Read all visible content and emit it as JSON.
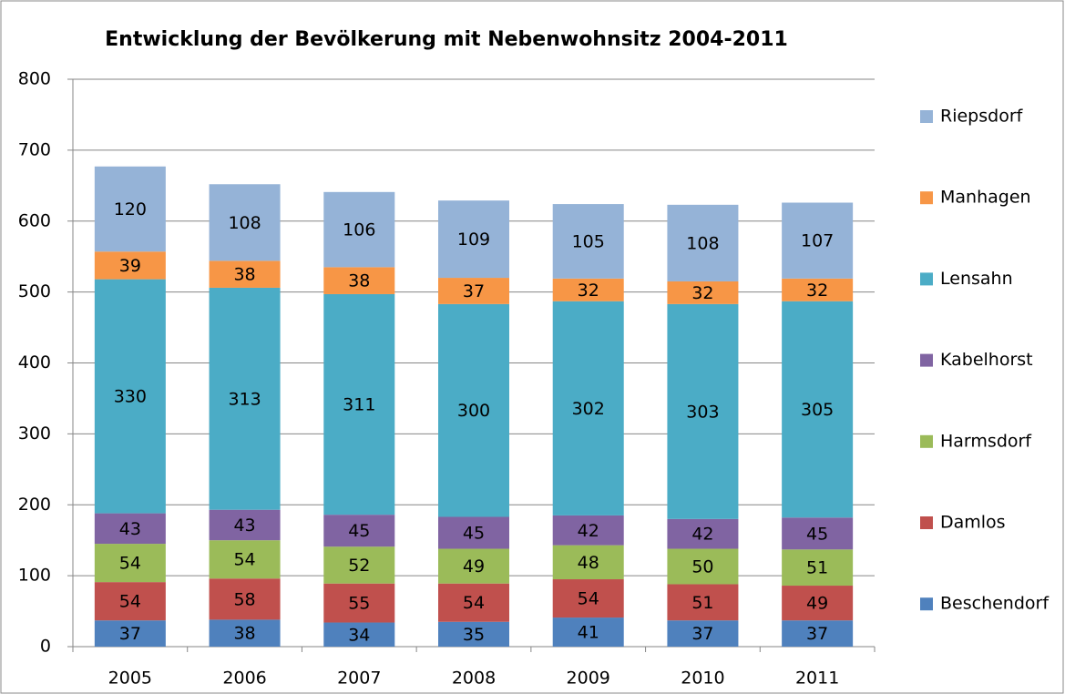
{
  "chart_data": {
    "type": "stacked_bar",
    "title": "Entwicklung der Bevölkerung mit Nebenwohnsitz 2004-2011",
    "categories": [
      "2005",
      "2006",
      "2007",
      "2008",
      "2009",
      "2010",
      "2011"
    ],
    "series": [
      {
        "name": "Beschendorf",
        "color": "#4f81bd",
        "values": [
          37,
          38,
          34,
          35,
          41,
          37,
          37
        ]
      },
      {
        "name": "Damlos",
        "color": "#c0504d",
        "values": [
          54,
          58,
          55,
          54,
          54,
          51,
          49
        ]
      },
      {
        "name": "Harmsdorf",
        "color": "#9bbb59",
        "values": [
          54,
          54,
          52,
          49,
          48,
          50,
          51
        ]
      },
      {
        "name": "Kabelhorst",
        "color": "#8064a2",
        "values": [
          43,
          43,
          45,
          45,
          42,
          42,
          45
        ]
      },
      {
        "name": "Lensahn",
        "color": "#4bacc6",
        "values": [
          330,
          313,
          311,
          300,
          302,
          303,
          305
        ]
      },
      {
        "name": "Manhagen",
        "color": "#f79646",
        "values": [
          39,
          38,
          38,
          37,
          32,
          32,
          32
        ]
      },
      {
        "name": "Riepsdorf",
        "color": "#95b3d7",
        "values": [
          120,
          108,
          106,
          109,
          105,
          108,
          107
        ]
      }
    ],
    "ylim": [
      0,
      800
    ],
    "yticks": [
      0,
      100,
      200,
      300,
      400,
      500,
      600,
      700,
      800
    ],
    "grid": true,
    "legend": "right"
  }
}
